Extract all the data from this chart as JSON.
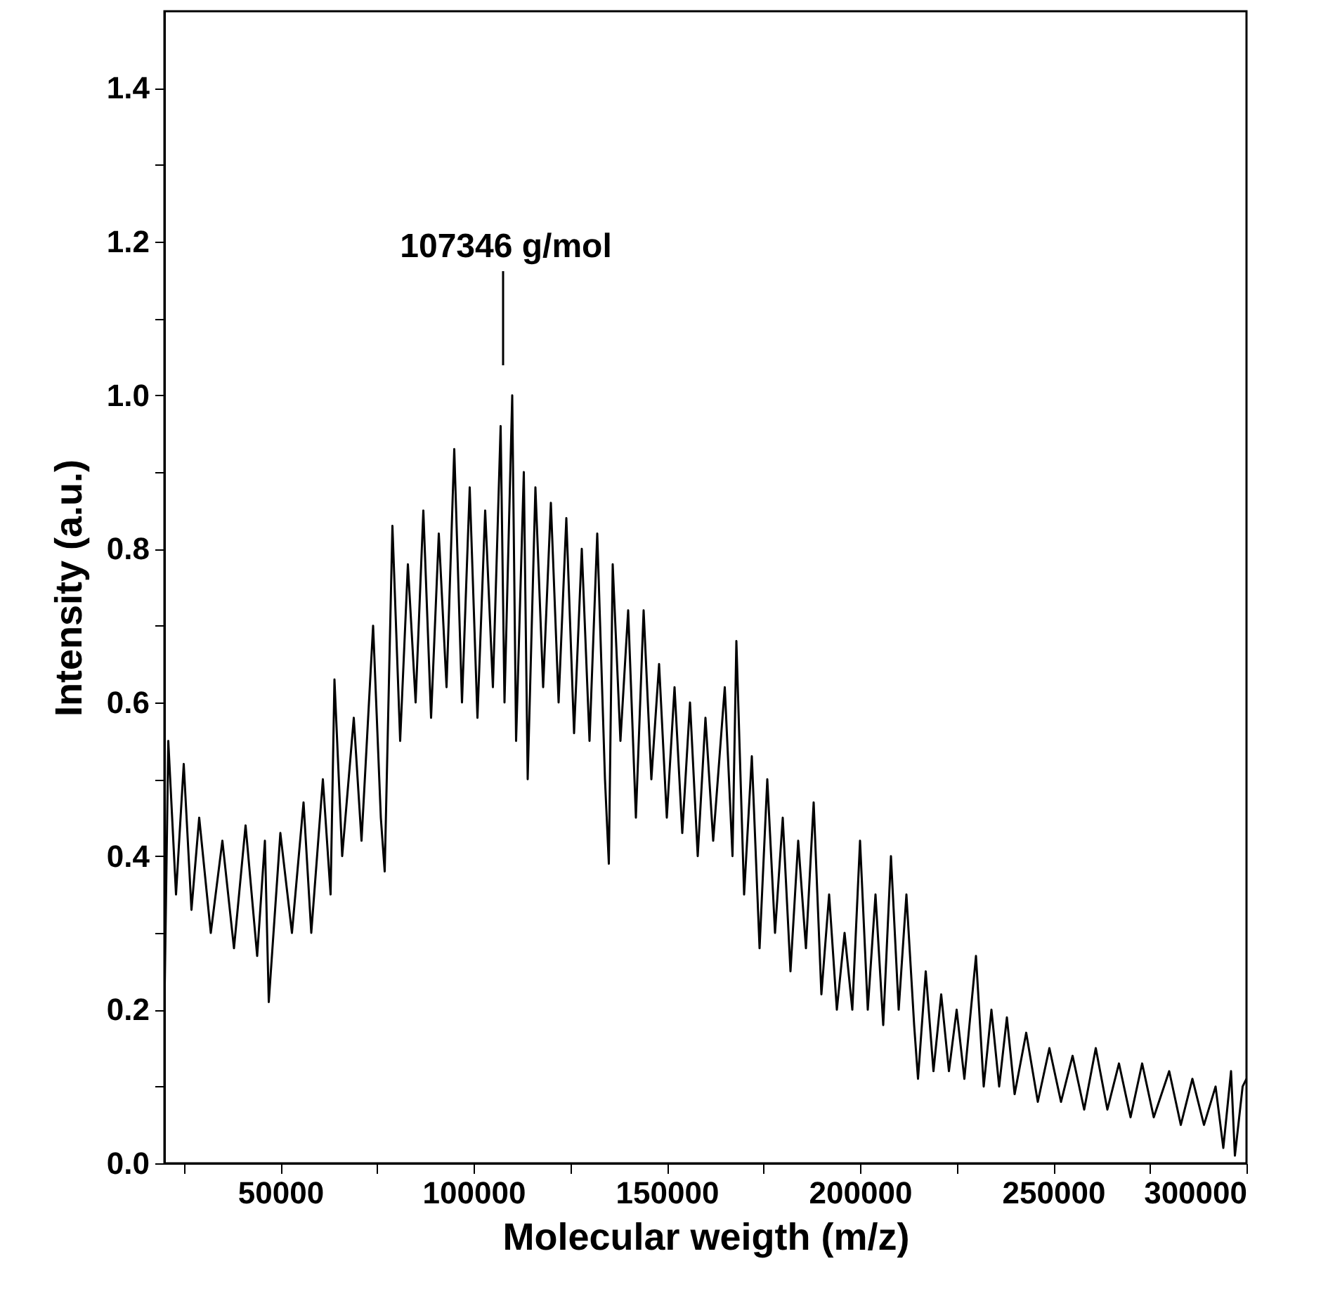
{
  "chart_data": {
    "type": "line",
    "xlabel": "Molecular weigth (m/z)",
    "ylabel": "Intensity (a.u.)",
    "xlim": [
      20000,
      300000
    ],
    "ylim": [
      0,
      1.5
    ],
    "xticks": [
      {
        "value": 25000,
        "label": null
      },
      50000,
      {
        "value": 75000,
        "label": null
      },
      100000,
      {
        "value": 125000,
        "label": null
      },
      150000,
      {
        "value": 175000,
        "label": null
      },
      200000,
      {
        "value": 225000,
        "label": null
      },
      250000,
      {
        "value": 275000,
        "label": null
      },
      300000
    ],
    "yticks": [
      {
        "value": 0,
        "label": "0.0"
      },
      {
        "value": 0.1,
        "label": null
      },
      {
        "value": 0.2,
        "label": "0.2"
      },
      {
        "value": 0.3,
        "label": null
      },
      {
        "value": 0.4,
        "label": "0.4"
      },
      {
        "value": 0.5,
        "label": null
      },
      {
        "value": 0.6,
        "label": "0.6"
      },
      {
        "value": 0.7,
        "label": null
      },
      {
        "value": 0.8,
        "label": "0.8"
      },
      {
        "value": 0.9,
        "label": null
      },
      {
        "value": 1,
        "label": "1.0"
      },
      {
        "value": 1.1,
        "label": null
      },
      {
        "value": 1.2,
        "label": "1.2"
      },
      {
        "value": 1.3,
        "label": null
      },
      {
        "value": 1.4,
        "label": "1.4"
      }
    ],
    "annotations": [
      "107346 g/mol"
    ],
    "series": [
      {
        "color": "#000000",
        "x": [
          20000,
          21000,
          23000,
          25000,
          27000,
          29000,
          32000,
          35000,
          38000,
          41000,
          44000,
          46000,
          47000,
          50000,
          53000,
          56000,
          58000,
          61000,
          63000,
          64000,
          66000,
          69000,
          71000,
          74000,
          76000,
          77000,
          79000,
          81000,
          83000,
          85000,
          87000,
          89000,
          91000,
          93000,
          95000,
          97000,
          99000,
          101000,
          103000,
          105000,
          107000,
          108000,
          110000,
          111000,
          113000,
          114000,
          116000,
          118000,
          120000,
          122000,
          124000,
          126000,
          128000,
          130000,
          132000,
          134000,
          135000,
          136000,
          138000,
          140000,
          142000,
          144000,
          146000,
          148000,
          150000,
          152000,
          154000,
          156000,
          158000,
          160000,
          162000,
          165000,
          167000,
          168000,
          170000,
          172000,
          174000,
          176000,
          178000,
          180000,
          182000,
          184000,
          186000,
          188000,
          190000,
          192000,
          194000,
          196000,
          198000,
          200000,
          202000,
          204000,
          206000,
          208000,
          210000,
          212000,
          214000,
          215000,
          217000,
          219000,
          221000,
          223000,
          225000,
          227000,
          230000,
          232000,
          234000,
          236000,
          238000,
          240000,
          243000,
          246000,
          249000,
          252000,
          255000,
          258000,
          261000,
          264000,
          267000,
          270000,
          273000,
          276000,
          280000,
          283000,
          286000,
          289000,
          292000,
          294000,
          296000,
          297000,
          299000,
          300000
        ],
        "values": [
          0.2,
          0.55,
          0.35,
          0.52,
          0.33,
          0.45,
          0.3,
          0.42,
          0.28,
          0.44,
          0.27,
          0.42,
          0.21,
          0.43,
          0.3,
          0.47,
          0.3,
          0.5,
          0.35,
          0.63,
          0.4,
          0.58,
          0.42,
          0.7,
          0.45,
          0.38,
          0.83,
          0.55,
          0.78,
          0.6,
          0.85,
          0.58,
          0.82,
          0.62,
          0.93,
          0.6,
          0.88,
          0.58,
          0.85,
          0.62,
          0.96,
          0.6,
          1.0,
          0.55,
          0.9,
          0.5,
          0.88,
          0.62,
          0.86,
          0.6,
          0.84,
          0.56,
          0.8,
          0.55,
          0.82,
          0.5,
          0.39,
          0.78,
          0.55,
          0.72,
          0.45,
          0.72,
          0.5,
          0.65,
          0.45,
          0.62,
          0.43,
          0.6,
          0.4,
          0.58,
          0.42,
          0.62,
          0.4,
          0.68,
          0.35,
          0.53,
          0.28,
          0.5,
          0.3,
          0.45,
          0.25,
          0.42,
          0.28,
          0.47,
          0.22,
          0.35,
          0.2,
          0.3,
          0.2,
          0.42,
          0.2,
          0.35,
          0.18,
          0.4,
          0.2,
          0.35,
          0.18,
          0.11,
          0.25,
          0.12,
          0.22,
          0.12,
          0.2,
          0.11,
          0.27,
          0.1,
          0.2,
          0.1,
          0.19,
          0.09,
          0.17,
          0.08,
          0.15,
          0.08,
          0.14,
          0.07,
          0.15,
          0.07,
          0.13,
          0.06,
          0.13,
          0.06,
          0.12,
          0.05,
          0.11,
          0.05,
          0.1,
          0.02,
          0.12,
          0.01,
          0.1,
          0.11
        ]
      }
    ]
  }
}
